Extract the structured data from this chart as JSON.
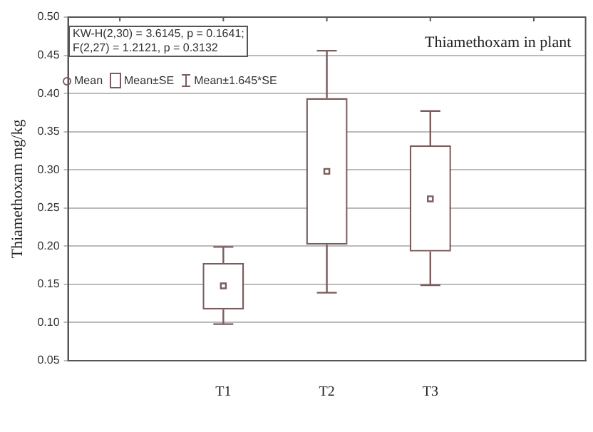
{
  "chart_data": {
    "type": "box",
    "title": "Thiamethoxam in plant",
    "ylabel": "Thiamethoxam mg/kg",
    "categories": [
      null,
      "T1",
      "T2",
      "T3",
      null
    ],
    "boxes": [
      null,
      {
        "low": 0.098,
        "q1": 0.117,
        "q3": 0.178,
        "high": 0.199,
        "mean": 0.148
      },
      {
        "low": 0.139,
        "q1": 0.202,
        "q3": 0.394,
        "high": 0.456,
        "mean": 0.298
      },
      {
        "low": 0.149,
        "q1": 0.193,
        "q3": 0.332,
        "high": 0.377,
        "mean": 0.262
      },
      null
    ],
    "color": "#7a5c5c",
    "ylim": [
      0.05,
      0.5
    ],
    "yticks": [
      {
        "value": 0.05,
        "label": "0.05"
      },
      {
        "value": 0.1,
        "label": "0.10"
      },
      {
        "value": 0.15,
        "label": "0.15"
      },
      {
        "value": 0.2,
        "label": "0.20"
      },
      {
        "value": 0.25,
        "label": "0.25"
      },
      {
        "value": 0.3,
        "label": "0.30"
      },
      {
        "value": 0.35,
        "label": "0.35"
      },
      {
        "value": 0.4,
        "label": "0.40"
      },
      {
        "value": 0.45,
        "label": "0.45"
      },
      {
        "value": 0.5,
        "label": "0.50"
      }
    ],
    "grid": "y",
    "annotations": [
      "KW-H(2,30) = 3.6145, p = 0.1641;",
      "F(2,27) = 1.2121, p = 0.3132",
      "Mean",
      "Mean±SE",
      "Mean±1.645*SE"
    ]
  }
}
